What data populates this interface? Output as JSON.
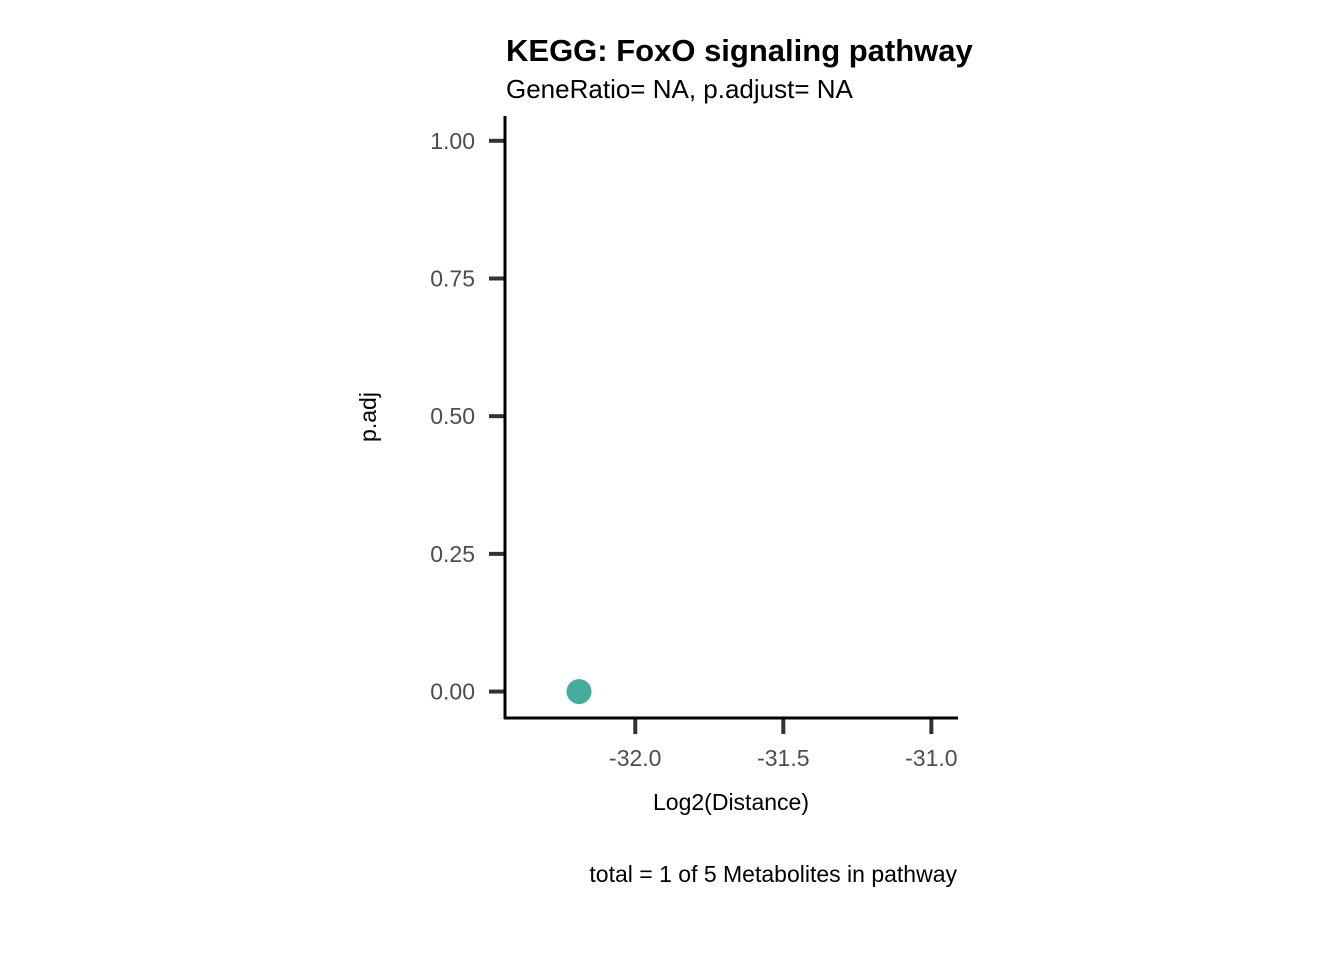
{
  "chart_data": {
    "type": "scatter",
    "title": "KEGG: FoxO signaling pathway",
    "subtitle": "GeneRatio= NA, p.adjust= NA",
    "xlabel": "Log2(Distance)",
    "ylabel": "p.adj",
    "caption": "total = 1 of 5 Metabolites in pathway",
    "xlim": [
      -32.44,
      -30.91
    ],
    "ylim": [
      -0.048,
      1.045
    ],
    "x_ticks": [
      -32.0,
      -31.5,
      -31.0
    ],
    "x_tick_labels": [
      "-32.0",
      "-31.5",
      "-31.0"
    ],
    "y_ticks": [
      0.0,
      0.25,
      0.5,
      0.75,
      1.0
    ],
    "y_tick_labels": [
      "0.00",
      "0.25",
      "0.50",
      "0.75",
      "1.00"
    ],
    "grid": false,
    "legend": "none",
    "point_color": "#45ab9a",
    "points": [
      {
        "x": -32.19,
        "y": 0.0
      }
    ]
  }
}
